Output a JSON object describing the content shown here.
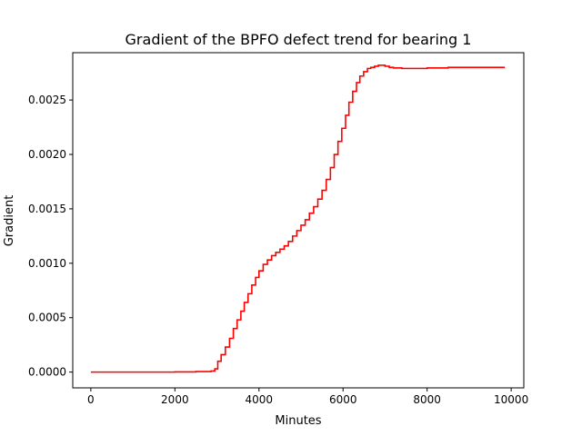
{
  "chart_data": {
    "type": "line",
    "title": "Gradient of the BPFO defect trend for bearing 1",
    "xlabel": "Minutes",
    "ylabel": "Gradient",
    "xlim": [
      -430,
      10300
    ],
    "ylim": [
      -0.000145,
      0.002935
    ],
    "xticks": [
      0,
      2000,
      4000,
      6000,
      8000,
      10000
    ],
    "xtick_labels": [
      "0",
      "2000",
      "4000",
      "6000",
      "8000",
      "10000"
    ],
    "yticks": [
      0.0,
      0.0005,
      0.001,
      0.0015,
      0.002,
      0.0025
    ],
    "ytick_labels": [
      "0.0000",
      "0.0005",
      "0.0010",
      "0.0015",
      "0.0020",
      "0.0025"
    ],
    "grid": false,
    "legend": "none",
    "series": [
      {
        "color": "#ff0000",
        "style": "step",
        "x": [
          0,
          1000,
          2000,
          2500,
          2860,
          2950,
          3020,
          3100,
          3200,
          3300,
          3390,
          3480,
          3570,
          3650,
          3740,
          3830,
          3920,
          4000,
          4100,
          4200,
          4300,
          4400,
          4500,
          4600,
          4700,
          4800,
          4900,
          5000,
          5100,
          5200,
          5300,
          5400,
          5500,
          5600,
          5700,
          5790,
          5880,
          5970,
          6060,
          6140,
          6230,
          6320,
          6400,
          6490,
          6580,
          6660,
          6750,
          6840,
          6920,
          7000,
          7100,
          7200,
          7400,
          7600,
          8000,
          8500,
          9000,
          9500,
          9850
        ],
        "y": [
          0.0,
          0.0,
          2e-06,
          5e-06,
          1e-05,
          3e-05,
          0.0001,
          0.00016,
          0.00023,
          0.00031,
          0.0004,
          0.00048,
          0.00056,
          0.00064,
          0.00072,
          0.0008,
          0.00087,
          0.00093,
          0.00099,
          0.00103,
          0.00107,
          0.0011,
          0.00113,
          0.00116,
          0.0012,
          0.00125,
          0.0013,
          0.00135,
          0.0014,
          0.00146,
          0.00152,
          0.00159,
          0.00167,
          0.00177,
          0.00188,
          0.002,
          0.00212,
          0.00224,
          0.00236,
          0.00248,
          0.00258,
          0.00266,
          0.00272,
          0.00276,
          0.00279,
          0.0028,
          0.00281,
          0.00282,
          0.00282,
          0.00281,
          0.0028,
          0.002795,
          0.00279,
          0.00279,
          0.002795,
          0.0028,
          0.0028,
          0.0028,
          0.0028
        ]
      }
    ]
  }
}
